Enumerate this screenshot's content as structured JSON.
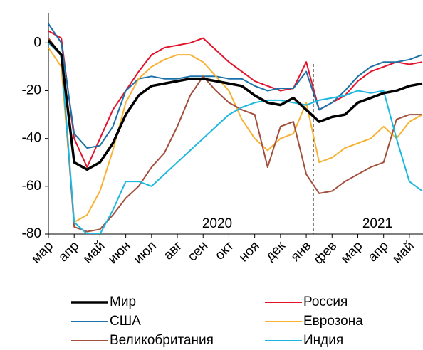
{
  "chart_data": {
    "type": "line",
    "categories": [
      "мар",
      null,
      "апр",
      null,
      "май",
      null,
      "июн",
      null,
      "июл",
      null,
      "авг",
      null,
      "сен",
      null,
      "окт",
      null,
      "ноя",
      null,
      "дек",
      null,
      "янв",
      null,
      "фев",
      null,
      "мар",
      null,
      "апр",
      null,
      "май",
      null
    ],
    "annotations": [
      "2020",
      "2021"
    ],
    "ylim": [
      -80,
      12
    ],
    "yticks": [
      -80,
      -60,
      -40,
      -20,
      0
    ],
    "series": [
      {
        "name": "Мир",
        "color": "#000000",
        "values": [
          1,
          -5,
          -50,
          -53,
          -50,
          -42,
          -30,
          -22,
          -18,
          -17,
          -16,
          -15,
          -15,
          -16,
          -17,
          -18,
          -22,
          -25,
          -26,
          -23,
          -28,
          -33,
          -31,
          -30,
          -25,
          -23,
          -21,
          -20,
          -18,
          -17
        ]
      },
      {
        "name": "Россия",
        "color": "#e3132c",
        "values": [
          5,
          2,
          -40,
          -52,
          -40,
          -28,
          -20,
          -12,
          -5,
          -2,
          -1,
          0,
          2,
          -3,
          -8,
          -12,
          -16,
          -18,
          -20,
          -19,
          -8,
          -28,
          -25,
          -22,
          -16,
          -12,
          -10,
          -8,
          -9,
          -8
        ]
      },
      {
        "name": "США",
        "color": "#1a72a8",
        "values": [
          8,
          0,
          -38,
          -44,
          -43,
          -35,
          -20,
          -15,
          -14,
          -15,
          -15,
          -14,
          -14,
          -14,
          -15,
          -15,
          -18,
          -20,
          -19,
          -19,
          -12,
          -28,
          -25,
          -20,
          -14,
          -10,
          -8,
          -8,
          -7,
          -5
        ]
      },
      {
        "name": "Еврозона",
        "color": "#f7b234",
        "values": [
          -2,
          -10,
          -75,
          -72,
          -62,
          -45,
          -25,
          -15,
          -10,
          -7,
          -5,
          -5,
          -8,
          -14,
          -20,
          -32,
          -40,
          -45,
          -40,
          -38,
          -25,
          -50,
          -48,
          -44,
          -42,
          -40,
          -35,
          -40,
          -33,
          -30
        ]
      },
      {
        "name": "Великобритания",
        "color": "#a24f3c",
        "values": [
          2,
          -5,
          -77,
          -79,
          -78,
          -72,
          -65,
          -60,
          -52,
          -46,
          -35,
          -22,
          -14,
          -20,
          -25,
          -28,
          -30,
          -52,
          -35,
          -33,
          -55,
          -63,
          -62,
          -58,
          -55,
          -52,
          -50,
          -32,
          -30,
          -30
        ]
      },
      {
        "name": "Индия",
        "color": "#1cb8e0",
        "values": [
          0,
          -5,
          -75,
          -80,
          -80,
          -70,
          -58,
          -58,
          -60,
          -55,
          -50,
          -45,
          -40,
          -35,
          -30,
          -27,
          -25,
          -24,
          -24,
          -25,
          -26,
          -24,
          -23,
          -22,
          -20,
          -21,
          -20,
          -40,
          -58,
          -62
        ]
      }
    ]
  }
}
